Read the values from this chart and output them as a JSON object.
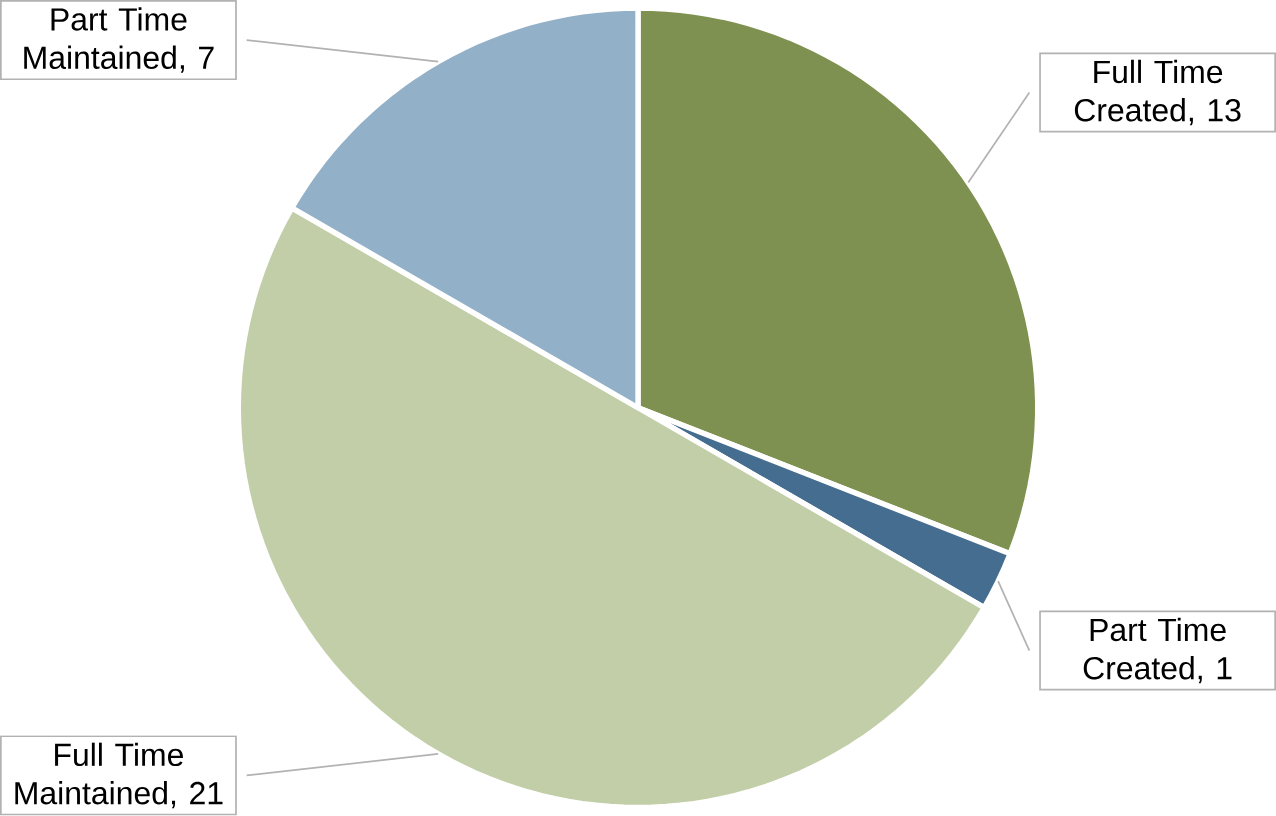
{
  "chart_data": {
    "type": "pie",
    "categories": [
      "Full Time Created",
      "Part Time Created",
      "Full Time Maintained",
      "Part Time Maintained"
    ],
    "values": [
      13,
      1,
      21,
      7
    ],
    "value_labels": [
      ", 13",
      ", 1",
      ", 21",
      ", 7"
    ],
    "colors": [
      "#7f9150",
      "#456d8f",
      "#c2cea8",
      "#93b0c9"
    ]
  }
}
